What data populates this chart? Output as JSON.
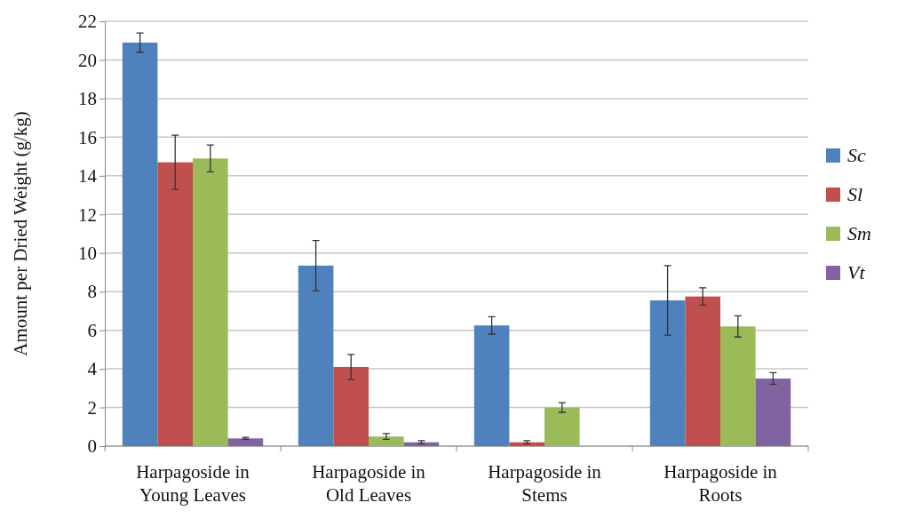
{
  "chart_data": {
    "type": "bar",
    "ylabel": "Amount per Dried Weight (g/kg)",
    "categories": [
      "Harpagoside in\nYoung Leaves",
      "Harpagoside in\nOld Leaves",
      "Harpagoside in\nStems",
      "Harpagoside in\nRoots"
    ],
    "series": [
      {
        "name": "Sc",
        "color": "#4f81bd",
        "values": [
          20.9,
          9.35,
          6.25,
          7.55
        ],
        "errors": [
          0.5,
          1.3,
          0.45,
          1.8
        ]
      },
      {
        "name": "Sl",
        "color": "#c0504d",
        "values": [
          14.7,
          4.1,
          0.2,
          7.75
        ],
        "errors": [
          1.4,
          0.65,
          0.08,
          0.45
        ]
      },
      {
        "name": "Sm",
        "color": "#9bbb59",
        "values": [
          14.9,
          0.5,
          2.0,
          6.2
        ],
        "errors": [
          0.7,
          0.15,
          0.25,
          0.55
        ]
      },
      {
        "name": "Vt",
        "color": "#8064a2",
        "values": [
          0.4,
          0.2,
          null,
          3.5
        ],
        "errors": [
          0.05,
          0.08,
          null,
          0.3
        ]
      }
    ],
    "ylim": [
      0,
      22
    ],
    "yticks": [
      0,
      2,
      4,
      6,
      8,
      10,
      12,
      14,
      16,
      18,
      20,
      22
    ],
    "grid": "y",
    "legend": "right"
  }
}
